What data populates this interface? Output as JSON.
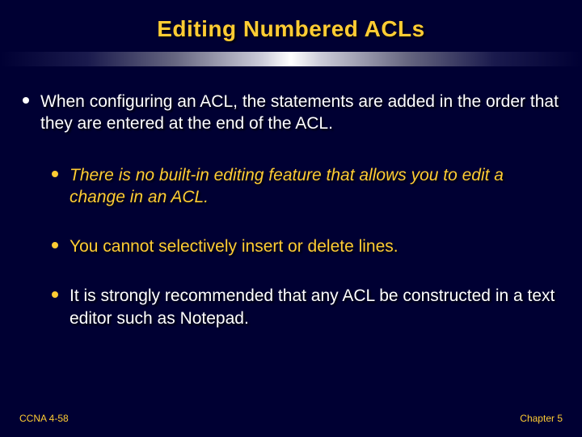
{
  "title": "Editing Numbered ACLs",
  "main_bullet": "When configuring an ACL, the statements are added in the order that they are entered at the end of the ACL.",
  "sub_bullets": [
    {
      "text": "There is no built-in editing feature that allows you to edit a change in an ACL.",
      "italic": true,
      "color": "#ffcc33"
    },
    {
      "text": "You cannot selectively insert or delete lines.",
      "italic": false,
      "color": "#ffcc33"
    },
    {
      "text": "It is strongly recommended that any ACL be constructed in a text editor such as Notepad.",
      "italic": false,
      "color": "#ffffff"
    }
  ],
  "footer_left": "CCNA 4-58",
  "footer_right": "Chapter 5",
  "colors": {
    "background": "#000033",
    "accent": "#ffcc33",
    "text": "#ffffff"
  }
}
